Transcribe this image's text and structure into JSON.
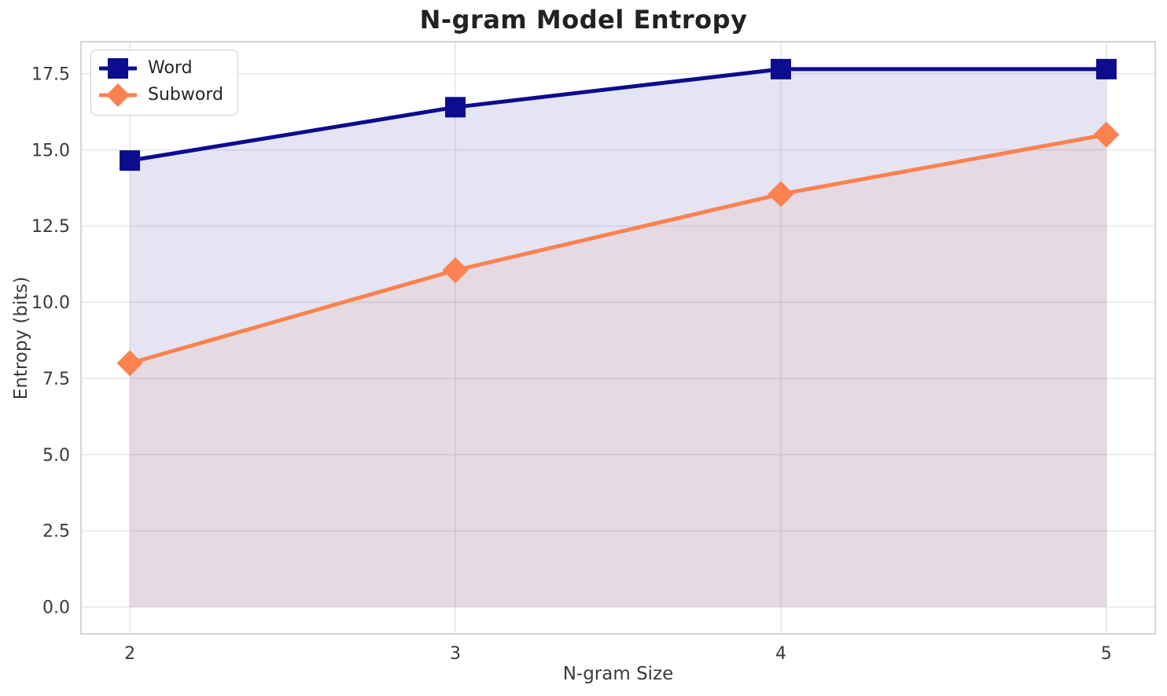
{
  "figure": {
    "title": "N-gram Model Entropy"
  },
  "chart_data": {
    "type": "line",
    "title": "N-gram Model Entropy",
    "xlabel": "N-gram Size",
    "ylabel": "Entropy (bits)",
    "x": [
      2,
      3,
      4,
      5
    ],
    "series": [
      {
        "name": "Word",
        "marker": "square",
        "color": "#0c0c8e",
        "values": [
          14.65,
          16.4,
          17.65,
          17.65
        ]
      },
      {
        "name": "Subword",
        "marker": "diamond",
        "color": "#fb8150",
        "values": [
          8.0,
          11.05,
          13.55,
          15.5
        ]
      }
    ],
    "fill_to_zero": true,
    "fill_opacity": 0.11,
    "xlim": [
      1.85,
      5.15
    ],
    "ylim": [
      -0.88,
      18.55
    ],
    "xtick_values": [
      2,
      3,
      4,
      5
    ],
    "xtick_labels": [
      "2",
      "3",
      "4",
      "5"
    ],
    "ytick_values": [
      0,
      2.5,
      5,
      7.5,
      10,
      12.5,
      15,
      17.5
    ],
    "ytick_labels": [
      "0.0",
      "2.5",
      "5.0",
      "7.5",
      "10.0",
      "12.5",
      "15.0",
      "17.5"
    ],
    "grid": true,
    "legend": {
      "position": "upper-left",
      "entries": [
        "Word",
        "Subword"
      ]
    }
  },
  "colors": {
    "background": "#ffffff",
    "grid": "#e7e7e7",
    "spine": "#d5d5d5",
    "tick_text": "#3a3a3a",
    "title_text": "#222222",
    "legend_border": "#cccccc",
    "word_line": "#0c0c8e",
    "subword_line": "#fb8150"
  }
}
